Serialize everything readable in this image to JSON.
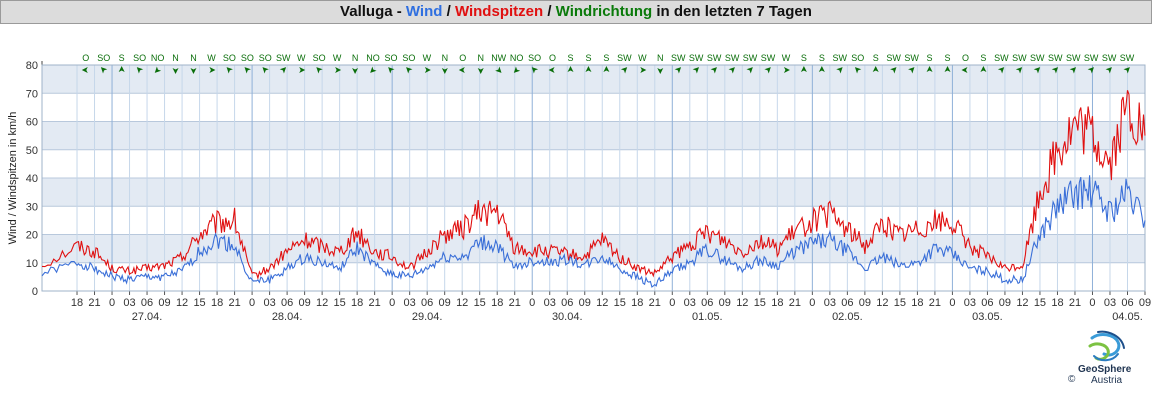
{
  "title": {
    "parts": [
      {
        "text": "Valluga - ",
        "color": "#111111"
      },
      {
        "text": "Wind",
        "color": "#2f6fe0"
      },
      {
        "text": " / ",
        "color": "#111111"
      },
      {
        "text": "Windspitzen",
        "color": "#e01010"
      },
      {
        "text": " / ",
        "color": "#111111"
      },
      {
        "text": "Windrichtung",
        "color": "#0a7a0a"
      },
      {
        "text": " in den letzten 7 Tagen",
        "color": "#111111"
      }
    ]
  },
  "logo": {
    "name": "GeoSphere",
    "sub": "Austria",
    "copyright": "©"
  },
  "chart_data": {
    "type": "line",
    "ylabel": "Wind / Windspitzen in km/h",
    "ylim": [
      0,
      80
    ],
    "yticks": [
      0,
      10,
      20,
      30,
      40,
      50,
      60,
      70,
      80
    ],
    "grid": true,
    "x_hour_ticks": [
      "18",
      "21",
      "0",
      "03",
      "06",
      "09",
      "12",
      "15",
      "18",
      "21",
      "0",
      "03",
      "06",
      "09",
      "12",
      "15",
      "18",
      "21",
      "0",
      "03",
      "06",
      "09",
      "12",
      "15",
      "18",
      "21",
      "0",
      "03",
      "06",
      "09",
      "12",
      "15",
      "18",
      "21",
      "0",
      "03",
      "06",
      "09",
      "12",
      "15",
      "18",
      "21",
      "0",
      "03",
      "06",
      "09",
      "12",
      "15",
      "18",
      "21",
      "0",
      "03",
      "06",
      "09",
      "12",
      "15",
      "18",
      "21",
      "0",
      "03",
      "06",
      "09"
    ],
    "x_dates": [
      "27.04.",
      "28.04.",
      "29.04.",
      "30.04.",
      "01.05.",
      "02.05.",
      "03.05.",
      "04.05."
    ],
    "x_range_hours": [
      -6,
      183
    ],
    "series": [
      {
        "name": "Wind",
        "color": "#3a6fd8",
        "x": [
          -6,
          0,
          3,
          6,
          9,
          12,
          15,
          18,
          21,
          24,
          27,
          30,
          33,
          36,
          39,
          42,
          45,
          48,
          51,
          54,
          57,
          60,
          63,
          66,
          69,
          72,
          75,
          78,
          81,
          84,
          87,
          90,
          93,
          96,
          99,
          102,
          105,
          108,
          111,
          114,
          117,
          120,
          123,
          126,
          129,
          132,
          135,
          138,
          141,
          144,
          147,
          150,
          153,
          156,
          159,
          162,
          165,
          168,
          171,
          174,
          177,
          180,
          183
        ],
        "y": [
          6,
          10,
          8,
          5,
          4,
          5,
          5,
          7,
          14,
          18,
          16,
          3,
          4,
          8,
          12,
          10,
          8,
          15,
          9,
          6,
          5,
          8,
          12,
          12,
          17,
          16,
          8,
          11,
          10,
          11,
          9,
          12,
          8,
          5,
          2,
          7,
          10,
          15,
          11,
          8,
          11,
          9,
          14,
          17,
          18,
          14,
          8,
          12,
          9,
          10,
          15,
          13,
          8,
          7,
          4,
          4,
          20,
          30,
          35,
          35,
          28,
          35,
          25
        ]
      },
      {
        "name": "Windspitzen",
        "color": "#e01010",
        "x": [
          -6,
          0,
          3,
          6,
          9,
          12,
          15,
          18,
          21,
          24,
          27,
          30,
          33,
          36,
          39,
          42,
          45,
          48,
          51,
          54,
          57,
          60,
          63,
          66,
          69,
          72,
          75,
          78,
          81,
          84,
          87,
          90,
          93,
          96,
          99,
          102,
          105,
          108,
          111,
          114,
          117,
          120,
          123,
          126,
          129,
          132,
          135,
          138,
          141,
          144,
          147,
          150,
          153,
          156,
          159,
          162,
          165,
          168,
          171,
          174,
          177,
          180,
          183
        ],
        "y": [
          9,
          16,
          14,
          8,
          7,
          8,
          9,
          12,
          20,
          24,
          25,
          5,
          8,
          14,
          18,
          16,
          14,
          21,
          14,
          12,
          8,
          14,
          20,
          22,
          28,
          28,
          15,
          14,
          14,
          13,
          12,
          18,
          12,
          8,
          6,
          12,
          16,
          21,
          18,
          14,
          18,
          15,
          21,
          25,
          27,
          22,
          16,
          24,
          20,
          22,
          25,
          24,
          16,
          12,
          8,
          9,
          35,
          50,
          58,
          55,
          45,
          65,
          55
        ]
      }
    ],
    "direction": {
      "labels": [
        "O",
        "SO",
        "S",
        "SO",
        "NO",
        "N",
        "N",
        "W",
        "SO",
        "SO",
        "SO",
        "SW",
        "W",
        "SO",
        "W",
        "N",
        "NO",
        "SO",
        "SO",
        "W",
        "N",
        "O",
        "N",
        "NW",
        "NO",
        "SO",
        "O",
        "S",
        "S",
        "S",
        "SW",
        "W",
        "N",
        "SW",
        "SW",
        "SW",
        "SW",
        "SW",
        "SW",
        "W",
        "S",
        "S",
        "SW",
        "SO",
        "S",
        "SW",
        "SW",
        "S",
        "S",
        "O",
        "S",
        "SW",
        "SW",
        "SW",
        "SW",
        "SW",
        "SW",
        "SW",
        "SW"
      ],
      "color": "#0a6e0a"
    }
  }
}
